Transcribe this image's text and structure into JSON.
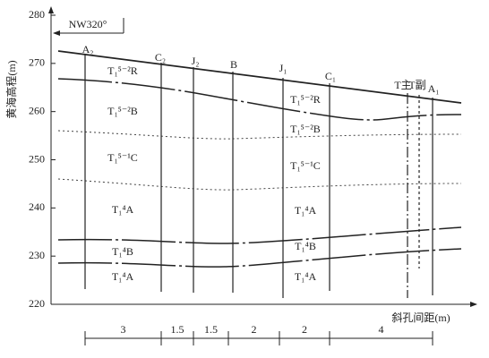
{
  "direction": "NW320°",
  "y_axis": {
    "title": "黄海高程(m)",
    "ticks": [
      280,
      270,
      260,
      250,
      240,
      230,
      220
    ]
  },
  "x_axis": {
    "title": "斜孔间距(m)"
  },
  "boreholes": [
    {
      "label": "A₂"
    },
    {
      "label": "C₂"
    },
    {
      "label": "J₂"
    },
    {
      "label": "B"
    },
    {
      "label": "J₁"
    },
    {
      "label": "C₁"
    },
    {
      "label": "T主"
    },
    {
      "label": "T副"
    },
    {
      "label": "A₁"
    }
  ],
  "spacings": [
    3,
    1.5,
    1.5,
    2,
    2,
    4
  ],
  "layers": [
    {
      "label": "T₁⁵⁻²R"
    },
    {
      "label": "T₁⁵⁻²B"
    },
    {
      "label": "T₁⁵⁻¹C"
    },
    {
      "label": "T₁⁴A"
    },
    {
      "label": "T₁⁴B"
    },
    {
      "label": "T₁⁴A"
    },
    {
      "label": "T₁⁵⁻²R"
    },
    {
      "label": "T₁⁵⁻²B"
    },
    {
      "label": "T₁⁵⁻¹C"
    },
    {
      "label": "T₁⁴A"
    },
    {
      "label": "T₁⁴B"
    },
    {
      "label": "T₁⁴A"
    }
  ]
}
